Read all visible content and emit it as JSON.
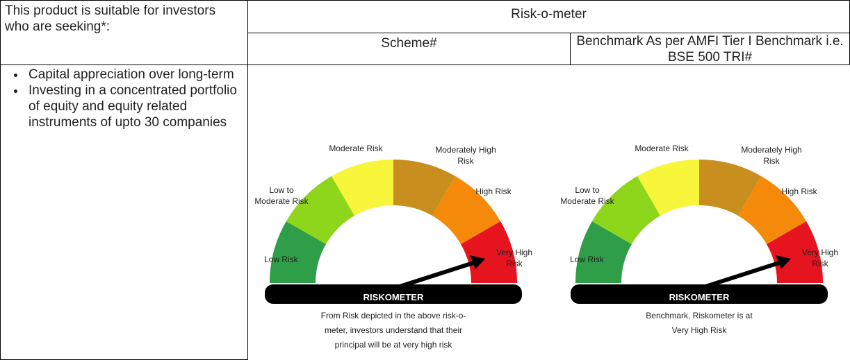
{
  "table": {
    "header": {
      "suitability": "This product is suitable for investors who are seeking*:",
      "riskometer": "Risk-o-meter",
      "scheme": "Scheme#",
      "benchmark": "Benchmark As per AMFI Tier I Benchmark i.e. BSE 500 TRI#"
    },
    "objectives": [
      "Capital appreciation over long-term",
      "Investing in a concentrated portfolio of equity and equity related instruments of upto 30 companies"
    ]
  },
  "riskometers": [
    {
      "levels": [
        [
          "Low Risk"
        ],
        [
          "Low to",
          "Moderate Risk"
        ],
        [
          "Moderate Risk"
        ],
        [
          "Moderately High",
          "Risk"
        ],
        [
          "High Risk"
        ],
        [
          "Very High",
          "Risk"
        ]
      ],
      "label": "RISKOMETER",
      "caption": [
        "From Risk depicted in the above risk-o-",
        "meter, investors understand that their",
        "principal will be at very high risk"
      ]
    },
    {
      "levels": [
        [
          "Low Risk"
        ],
        [
          "Low to",
          "Moderate Risk"
        ],
        [
          "Moderate Risk"
        ],
        [
          "Moderately High",
          "Risk"
        ],
        [
          "High Risk"
        ],
        [
          "Very High",
          "Risk"
        ]
      ],
      "label": "RISKOMETER",
      "caption": [
        "Benchmark, Riskometer is at",
        "Very High Risk"
      ]
    }
  ]
}
